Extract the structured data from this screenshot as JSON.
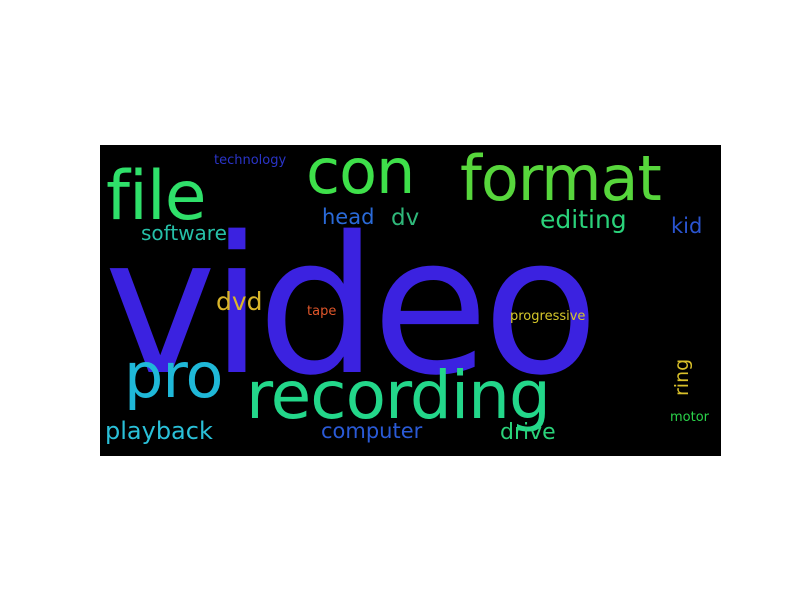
{
  "wordcloud": {
    "background": "#000000",
    "words": [
      {
        "id": "video",
        "text": "video",
        "color": "#3b22e0"
      },
      {
        "id": "file",
        "text": "file",
        "color": "#2fe06a"
      },
      {
        "id": "con",
        "text": "con",
        "color": "#3ee04a"
      },
      {
        "id": "format",
        "text": "format",
        "color": "#57d63c"
      },
      {
        "id": "recording",
        "text": "recording",
        "color": "#23d78a"
      },
      {
        "id": "pro",
        "text": "pro",
        "color": "#1fb8d8"
      },
      {
        "id": "editing",
        "text": "editing",
        "color": "#2ad27a"
      },
      {
        "id": "head",
        "text": "head",
        "color": "#2a6ad8"
      },
      {
        "id": "dv",
        "text": "dv",
        "color": "#2fb87a"
      },
      {
        "id": "kid",
        "text": "kid",
        "color": "#2a54d0"
      },
      {
        "id": "software",
        "text": "software",
        "color": "#26c0a8"
      },
      {
        "id": "technology",
        "text": "technology",
        "color": "#2a34c8"
      },
      {
        "id": "dvd",
        "text": "dvd",
        "color": "#d9b52a"
      },
      {
        "id": "tape",
        "text": "tape",
        "color": "#e0562a"
      },
      {
        "id": "progressive",
        "text": "progressive",
        "color": "#d6c82a"
      },
      {
        "id": "ring",
        "text": "ring",
        "color": "#d9c02a"
      },
      {
        "id": "playback",
        "text": "playback",
        "color": "#2ac0d8"
      },
      {
        "id": "computer",
        "text": "computer",
        "color": "#2a5ad6"
      },
      {
        "id": "drive",
        "text": "drive",
        "color": "#2ad27a"
      },
      {
        "id": "motor",
        "text": "motor",
        "color": "#2ad24a"
      }
    ]
  }
}
